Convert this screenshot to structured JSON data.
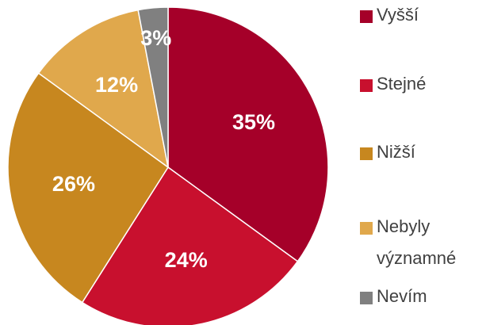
{
  "chart_data": {
    "type": "pie",
    "categories": [
      "Vyšší",
      "Stejné",
      "Nižší",
      "Nebyly významné",
      "Nevím"
    ],
    "values": [
      35,
      24,
      26,
      12,
      3
    ],
    "value_labels": [
      "35%",
      "24%",
      "26%",
      "12%",
      "3%"
    ],
    "colors": [
      "#a50029",
      "#c8102e",
      "#c7871f",
      "#e0a84c",
      "#808080"
    ],
    "legend": "right"
  }
}
